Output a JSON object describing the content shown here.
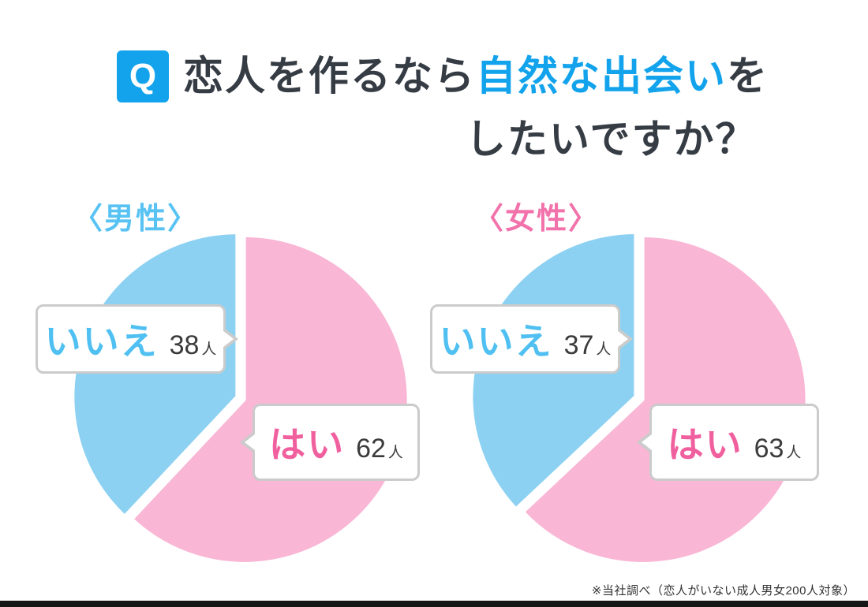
{
  "title": {
    "q": "Q",
    "line1_pre": "恋人を作るなら",
    "line1_highlight": "自然な出会い",
    "line1_post": "を",
    "line2": "したいですか？"
  },
  "colors": {
    "accent_blue": "#12a3ec",
    "pie_pink": "#f9b6d5",
    "pie_blue": "#8cd1f2",
    "answer_pink": "#f0609e",
    "answer_blue": "#4fc0f1",
    "group_male_blue": "#58c3f3",
    "group_female_pink": "#f272ab",
    "title_dark": "#363c44",
    "bubble_border": "#cbcbcb"
  },
  "chart_data": [
    {
      "type": "pie",
      "title": "〈男性〉",
      "labels": [
        "はい",
        "いいえ"
      ],
      "ids": [
        "yes",
        "no"
      ],
      "values": [
        62,
        38
      ],
      "unit": "人",
      "total": 100,
      "colors": [
        "#f9b6d5",
        "#8cd1f2"
      ],
      "start_angle_deg": 0,
      "direction": "clockwise",
      "legend_position": "callout-bubbles"
    },
    {
      "type": "pie",
      "title": "〈女性〉",
      "labels": [
        "はい",
        "いいえ"
      ],
      "ids": [
        "yes",
        "no"
      ],
      "values": [
        63,
        37
      ],
      "unit": "人",
      "total": 100,
      "colors": [
        "#f9b6d5",
        "#8cd1f2"
      ],
      "start_angle_deg": 0,
      "direction": "clockwise",
      "legend_position": "callout-bubbles"
    }
  ],
  "footnote": "※当社調べ（恋人がいない成人男女200人対象）"
}
